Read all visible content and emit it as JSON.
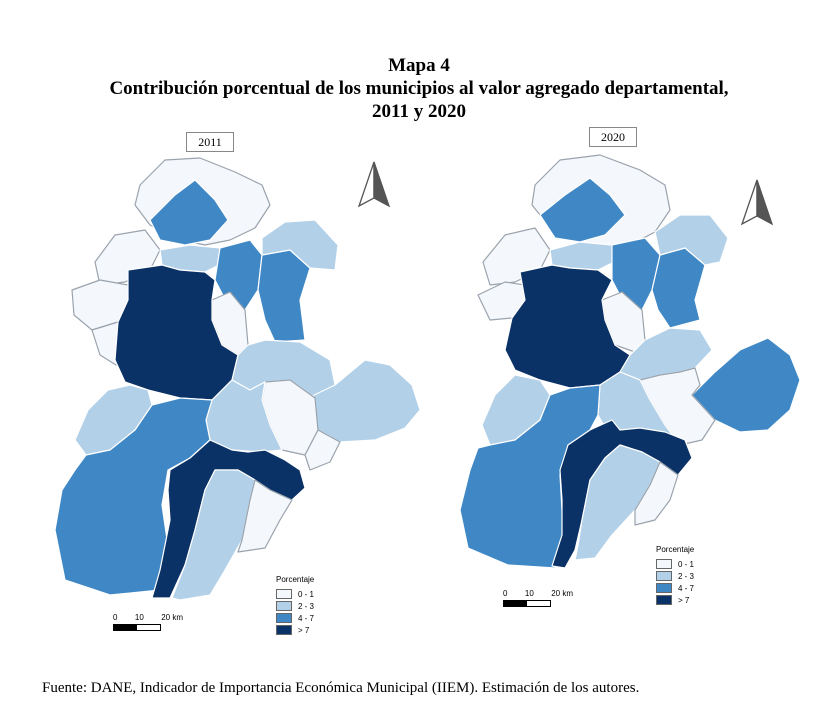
{
  "title": {
    "line1": "Mapa 4",
    "line2": "Contribución porcentual de los municipios al valor agregado departamental,",
    "line3": "2011 y 2020"
  },
  "maps": [
    {
      "year": "2011",
      "legend": {
        "title": "Porcentaje"
      }
    },
    {
      "year": "2020",
      "legend": {
        "title": "Porcentaje"
      }
    }
  ],
  "legend_classes": [
    {
      "label": "0 - 1",
      "color": "#f4f7fb"
    },
    {
      "label": "2 - 3",
      "color": "#b2d0e8"
    },
    {
      "label": "4 - 7",
      "color": "#3f88c5"
    },
    {
      "label": "> 7",
      "color": "#0b3266"
    }
  ],
  "scale": {
    "labels": [
      "0",
      "10",
      "20 km"
    ]
  },
  "source": "Fuente: DANE, Indicador de Importancia Económica Municipal (IIEM). Estimación de los autores.",
  "colors": {
    "border": "#ffffff",
    "outline": "#9aa3ad"
  }
}
